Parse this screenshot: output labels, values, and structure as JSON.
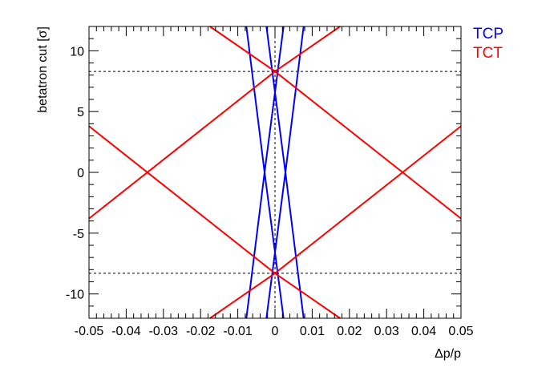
{
  "chart_data": {
    "type": "line",
    "title": "",
    "xlabel": "Δp/p",
    "ylabel": "betatron cut [σ]",
    "xlim": [
      -0.05,
      0.05
    ],
    "ylim": [
      -12,
      12
    ],
    "x_ticks": [
      -0.05,
      -0.04,
      -0.03,
      -0.02,
      -0.01,
      0,
      0.01,
      0.02,
      0.03,
      0.04,
      0.05
    ],
    "x_tick_labels": [
      "-0.05",
      "-0.04",
      "-0.03",
      "-0.02",
      "-0.01",
      "0",
      "0.01",
      "0.02",
      "0.03",
      "0.04",
      "0.05"
    ],
    "y_ticks": [
      -10,
      -5,
      0,
      5,
      10
    ],
    "y_tick_labels": [
      "-10",
      "-5",
      "0",
      "5",
      "10"
    ],
    "reference_lines": {
      "horizontal": [
        8.3,
        -8.3
      ],
      "vertical": [
        0
      ],
      "style": "dashed"
    },
    "legend": [
      {
        "name": "TCP",
        "color": "#0000ff"
      },
      {
        "name": "TCT",
        "color": "#ff0000"
      }
    ],
    "legend_placement": "top-right outside",
    "series": [
      {
        "name": "TCP",
        "color": "#0000ff",
        "segments": [
          {
            "x": [
              -0.0077,
              -0.0028,
              0.0023
            ],
            "y": [
              12,
              0,
              -12
            ]
          },
          {
            "x": [
              -0.0023,
              0.0028,
              0.0077
            ],
            "y": [
              12,
              0,
              -12
            ]
          },
          {
            "x": [
              0.0077,
              0.0028,
              -0.0023
            ],
            "y": [
              12,
              0,
              -12
            ]
          },
          {
            "x": [
              0.0023,
              -0.0028,
              -0.0077
            ],
            "y": [
              12,
              0,
              -12
            ]
          }
        ]
      },
      {
        "name": "TCT",
        "color": "#ff0000",
        "segments": [
          {
            "x": [
              -0.0175,
              0,
              0.05
            ],
            "y": [
              12,
              8.3,
              -3.8
            ]
          },
          {
            "x": [
              -0.05,
              0,
              0.0175
            ],
            "y": [
              -3.8,
              8.3,
              12
            ]
          },
          {
            "x": [
              -0.05,
              0,
              0.0175
            ],
            "y": [
              3.8,
              -8.3,
              -12
            ]
          },
          {
            "x": [
              -0.0175,
              0,
              0.05
            ],
            "y": [
              -12,
              -8.3,
              3.8
            ]
          }
        ]
      }
    ]
  }
}
